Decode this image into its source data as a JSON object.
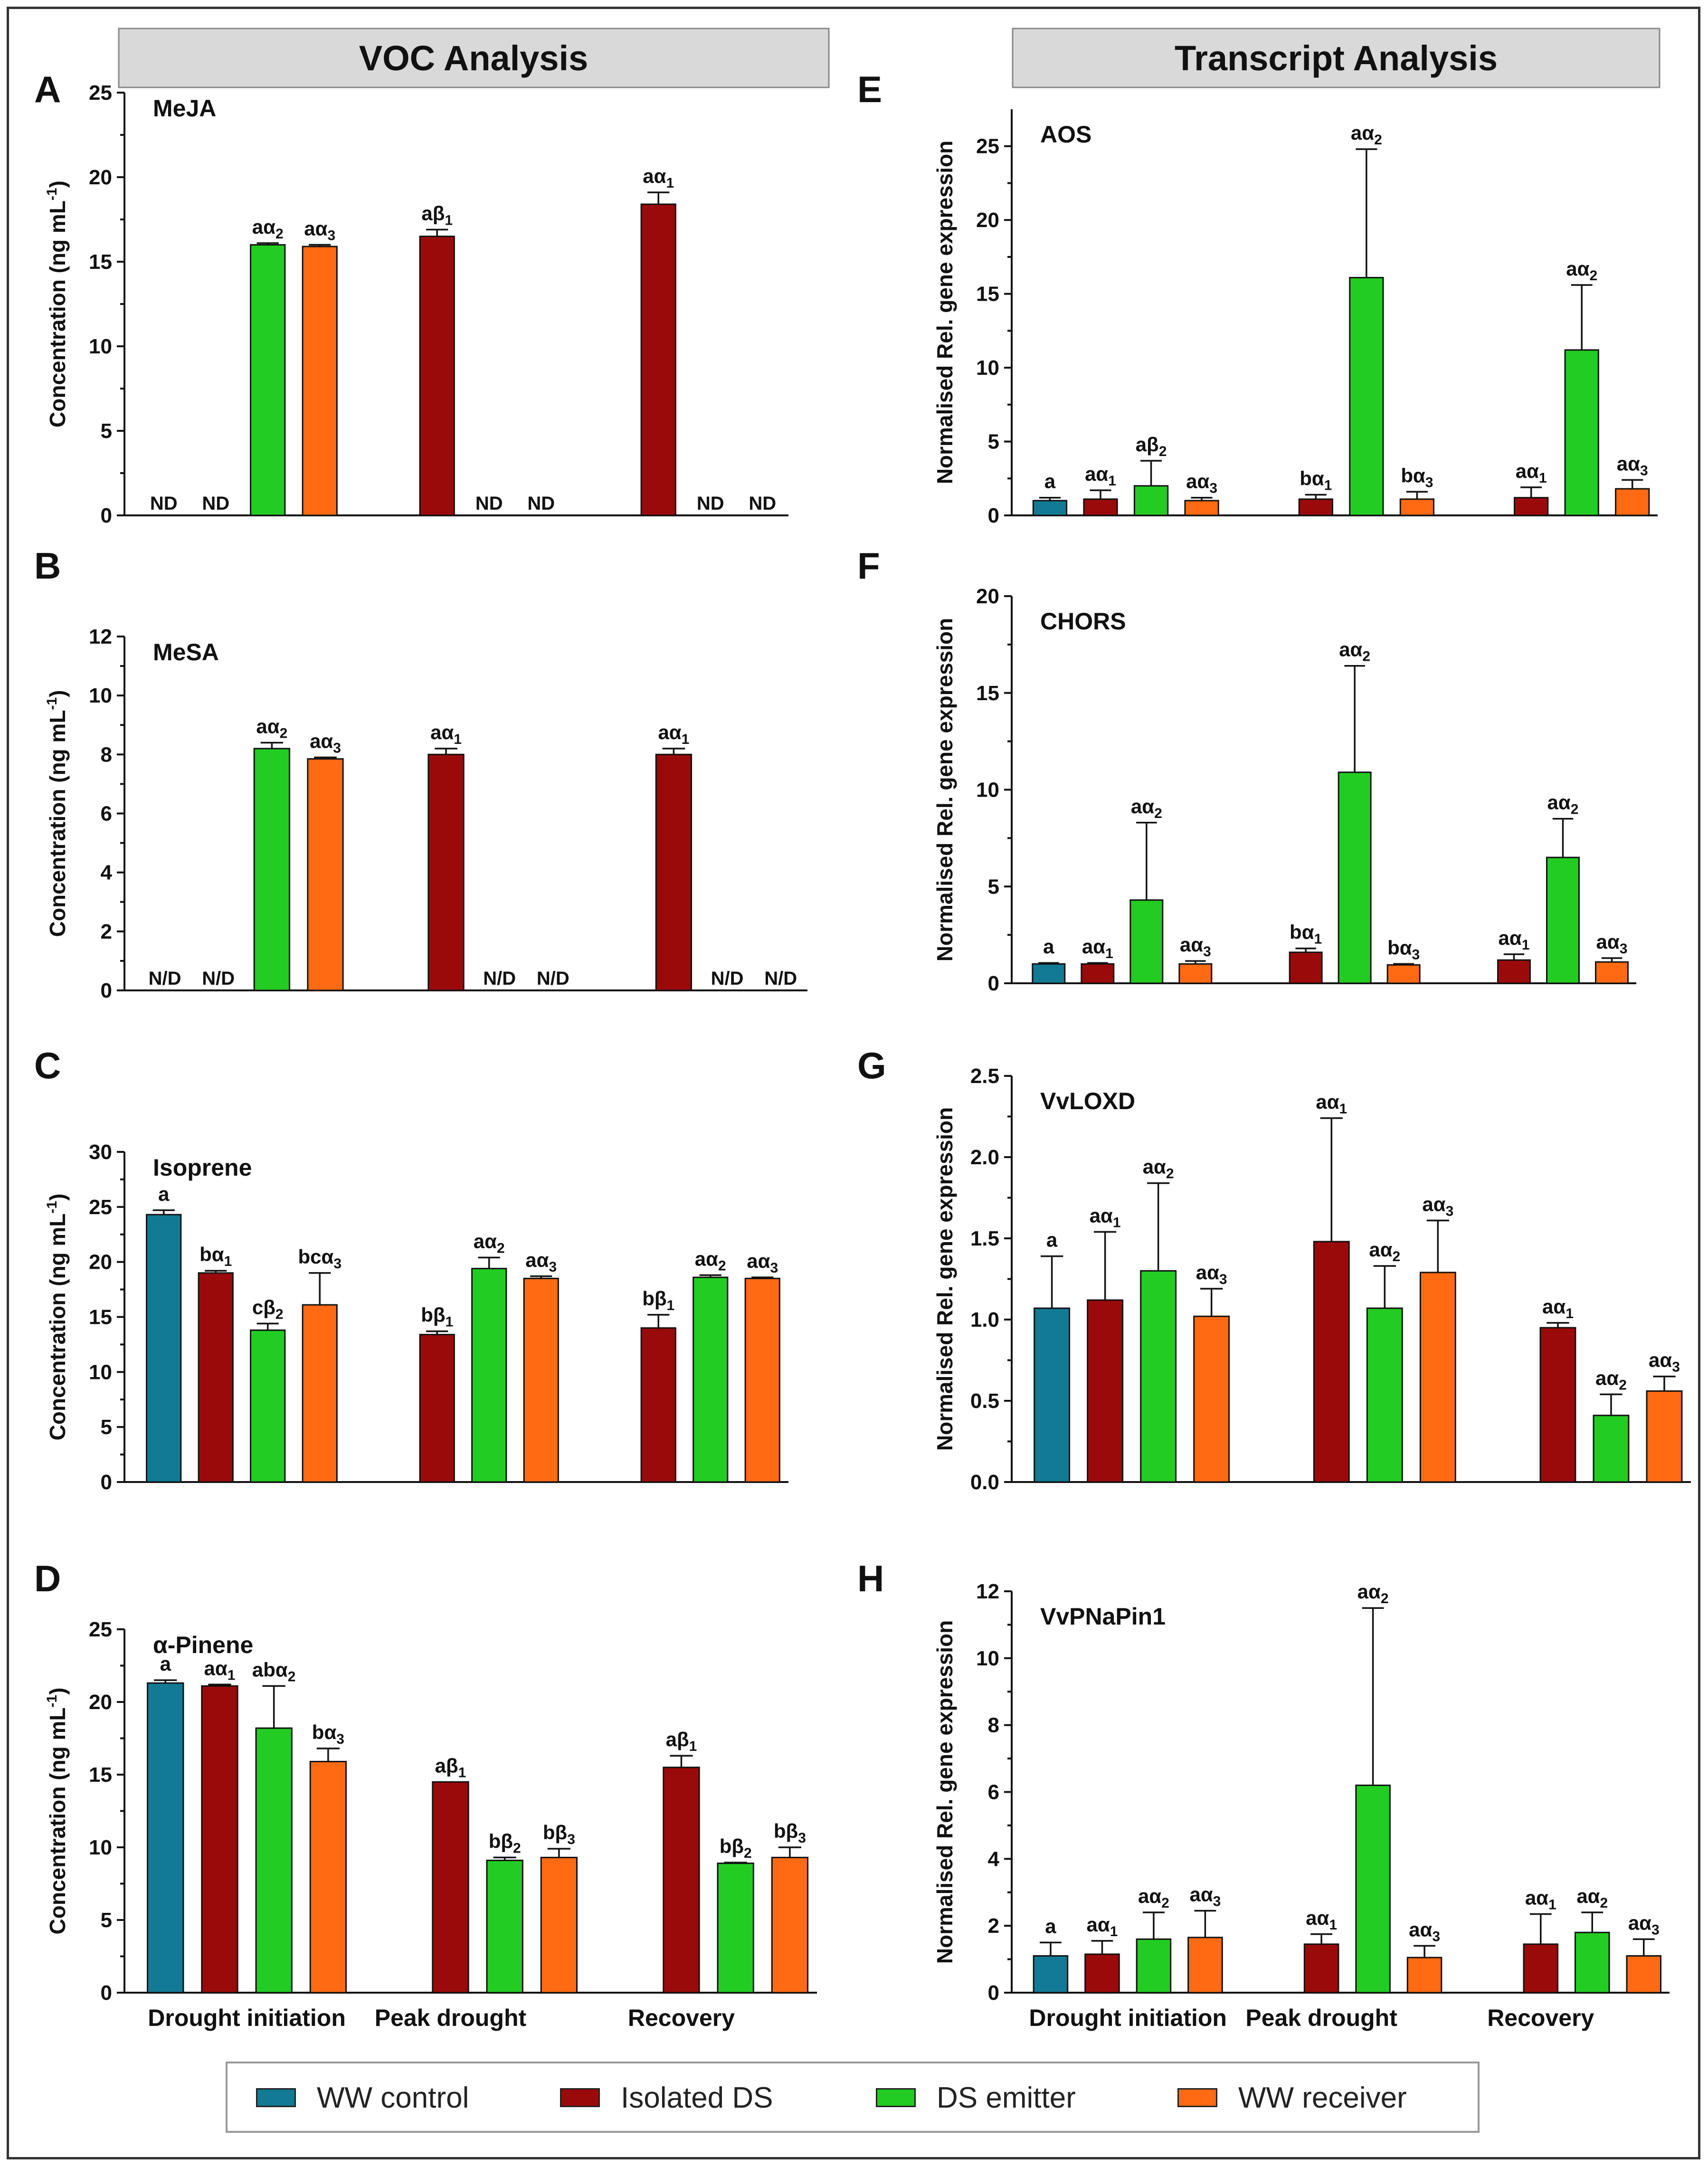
{
  "headers": {
    "left": "VOC Analysis",
    "right": "Transcript Analysis"
  },
  "colors": {
    "ww_control": "#127a94",
    "isolated_ds": "#9b0a0a",
    "ds_emitter": "#22cc22",
    "ww_receiver": "#ff6a13"
  },
  "legend": [
    {
      "label": "WW control",
      "color": "#127a94"
    },
    {
      "label": "Isolated DS",
      "color": "#9b0a0a"
    },
    {
      "label": "DS emitter",
      "color": "#22cc22"
    },
    {
      "label": "WW receiver",
      "color": "#ff6a13"
    }
  ],
  "chart_data": [
    {
      "panel": "A",
      "title": "MeJA",
      "type": "bar",
      "ylabel": "Concentration (ng mL-1)",
      "ylim": [
        0,
        25
      ],
      "yticks": [
        0,
        5,
        10,
        15,
        20,
        25
      ],
      "categories": [],
      "nd_text": "ND",
      "groups": [
        {
          "bars": [
            {
              "series": "WW control",
              "value": null,
              "err": 0,
              "label": ""
            },
            {
              "series": "Isolated DS",
              "value": null,
              "err": 0,
              "label": ""
            },
            {
              "series": "DS emitter",
              "value": 16.0,
              "err": 0.1,
              "label": "aα2"
            },
            {
              "series": "WW receiver",
              "value": 15.9,
              "err": 0.1,
              "label": "aα3"
            }
          ]
        },
        {
          "bars": [
            {
              "series": "WW control",
              "value": null,
              "err": 0,
              "label": ""
            },
            {
              "series": "Isolated DS",
              "value": 16.5,
              "err": 0.4,
              "label": "aβ1"
            },
            {
              "series": "DS emitter",
              "value": null,
              "err": 0,
              "label": ""
            },
            {
              "series": "WW receiver",
              "value": null,
              "err": 0,
              "label": ""
            }
          ]
        },
        {
          "bars": [
            {
              "series": "WW control",
              "value": null,
              "err": 0,
              "label": ""
            },
            {
              "series": "Isolated DS",
              "value": 18.4,
              "err": 0.7,
              "label": "aα1"
            },
            {
              "series": "DS emitter",
              "value": null,
              "err": 0,
              "label": ""
            },
            {
              "series": "WW receiver",
              "value": null,
              "err": 0,
              "label": ""
            }
          ]
        }
      ]
    },
    {
      "panel": "B",
      "title": "MeSA",
      "type": "bar",
      "ylabel": "Concentration (ng mL-1)",
      "ylim": [
        0,
        12
      ],
      "yticks": [
        0,
        2,
        4,
        6,
        8,
        10,
        12
      ],
      "categories": [],
      "nd_text": "N/D",
      "groups": [
        {
          "bars": [
            {
              "series": "WW control",
              "value": null,
              "err": 0,
              "label": ""
            },
            {
              "series": "Isolated DS",
              "value": null,
              "err": 0,
              "label": ""
            },
            {
              "series": "DS emitter",
              "value": 8.2,
              "err": 0.2,
              "label": "aα2"
            },
            {
              "series": "WW receiver",
              "value": 7.85,
              "err": 0.05,
              "label": "aα3"
            }
          ]
        },
        {
          "bars": [
            {
              "series": "WW control",
              "value": null,
              "err": 0,
              "label": ""
            },
            {
              "series": "Isolated DS",
              "value": 8.0,
              "err": 0.2,
              "label": "aα1"
            },
            {
              "series": "DS emitter",
              "value": null,
              "err": 0,
              "label": ""
            },
            {
              "series": "WW receiver",
              "value": null,
              "err": 0,
              "label": ""
            }
          ]
        },
        {
          "bars": [
            {
              "series": "WW control",
              "value": null,
              "err": 0,
              "label": ""
            },
            {
              "series": "Isolated DS",
              "value": 8.0,
              "err": 0.2,
              "label": "aα1"
            },
            {
              "series": "DS emitter",
              "value": null,
              "err": 0,
              "label": ""
            },
            {
              "series": "WW receiver",
              "value": null,
              "err": 0,
              "label": ""
            }
          ]
        }
      ]
    },
    {
      "panel": "C",
      "title": "Isoprene",
      "type": "bar",
      "ylabel": "Concentration (ng mL-1)",
      "ylim": [
        0,
        30
      ],
      "yticks": [
        0,
        5,
        10,
        15,
        20,
        25,
        30
      ],
      "categories": [],
      "nd_text": "",
      "groups": [
        {
          "bars": [
            {
              "series": "WW control",
              "value": 24.3,
              "err": 0.4,
              "label": "a"
            },
            {
              "series": "Isolated DS",
              "value": 19.0,
              "err": 0.2,
              "label": "bα1"
            },
            {
              "series": "DS emitter",
              "value": 13.8,
              "err": 0.6,
              "label": "cβ2"
            },
            {
              "series": "WW receiver",
              "value": 16.1,
              "err": 2.9,
              "label": "bcα3"
            }
          ]
        },
        {
          "bars": [
            {
              "series": "WW control",
              "value": null,
              "err": 0,
              "label": ""
            },
            {
              "series": "Isolated DS",
              "value": 13.4,
              "err": 0.3,
              "label": "bβ1"
            },
            {
              "series": "DS emitter",
              "value": 19.4,
              "err": 1.0,
              "label": "aα2"
            },
            {
              "series": "WW receiver",
              "value": 18.5,
              "err": 0.2,
              "label": "aα3"
            }
          ]
        },
        {
          "bars": [
            {
              "series": "WW control",
              "value": null,
              "err": 0,
              "label": ""
            },
            {
              "series": "Isolated DS",
              "value": 14.0,
              "err": 1.2,
              "label": "bβ1"
            },
            {
              "series": "DS emitter",
              "value": 18.6,
              "err": 0.2,
              "label": "aα2"
            },
            {
              "series": "WW receiver",
              "value": 18.5,
              "err": 0.1,
              "label": "aα3"
            }
          ]
        }
      ]
    },
    {
      "panel": "D",
      "title": "α-Pinene",
      "type": "bar",
      "ylabel": "Concentration (ng mL-1)",
      "ylim": [
        0,
        25
      ],
      "yticks": [
        0,
        5,
        10,
        15,
        20,
        25
      ],
      "categories": [
        "Drought initiation",
        "Peak drought",
        "Recovery"
      ],
      "nd_text": "",
      "groups": [
        {
          "bars": [
            {
              "series": "WW control",
              "value": 21.3,
              "err": 0.2,
              "label": "a"
            },
            {
              "series": "Isolated DS",
              "value": 21.1,
              "err": 0.1,
              "label": "aα1"
            },
            {
              "series": "DS emitter",
              "value": 18.2,
              "err": 2.9,
              "label": "abα2"
            },
            {
              "series": "WW receiver",
              "value": 15.9,
              "err": 0.9,
              "label": "bα3"
            }
          ]
        },
        {
          "bars": [
            {
              "series": "WW control",
              "value": null,
              "err": 0,
              "label": ""
            },
            {
              "series": "Isolated DS",
              "value": 14.5,
              "err": 0.0,
              "label": "aβ1"
            },
            {
              "series": "DS emitter",
              "value": 9.1,
              "err": 0.2,
              "label": "bβ2"
            },
            {
              "series": "WW receiver",
              "value": 9.3,
              "err": 0.6,
              "label": "bβ3"
            }
          ]
        },
        {
          "bars": [
            {
              "series": "WW control",
              "value": null,
              "err": 0,
              "label": ""
            },
            {
              "series": "Isolated DS",
              "value": 15.5,
              "err": 0.8,
              "label": "aβ1"
            },
            {
              "series": "DS emitter",
              "value": 8.9,
              "err": 0.05,
              "label": "bβ2"
            },
            {
              "series": "WW receiver",
              "value": 9.3,
              "err": 0.7,
              "label": "bβ3"
            }
          ]
        }
      ]
    },
    {
      "panel": "E",
      "title": "AOS",
      "type": "bar",
      "ylabel": "Normalised Rel. gene expression",
      "ylim": [
        0,
        27.5
      ],
      "yticks": [
        0,
        5,
        10,
        15,
        20,
        25
      ],
      "categories": [],
      "nd_text": "",
      "groups": [
        {
          "bars": [
            {
              "series": "WW control",
              "value": 1.0,
              "err": 0.2,
              "label": "a"
            },
            {
              "series": "Isolated DS",
              "value": 1.1,
              "err": 0.6,
              "label": "aα1"
            },
            {
              "series": "DS emitter",
              "value": 2.0,
              "err": 1.7,
              "label": "aβ2"
            },
            {
              "series": "WW receiver",
              "value": 1.0,
              "err": 0.2,
              "label": "aα3"
            }
          ]
        },
        {
          "bars": [
            {
              "series": "WW control",
              "value": null,
              "err": 0,
              "label": ""
            },
            {
              "series": "Isolated DS",
              "value": 1.1,
              "err": 0.3,
              "label": "bα1"
            },
            {
              "series": "DS emitter",
              "value": 16.1,
              "err": 8.7,
              "label": "aα2"
            },
            {
              "series": "WW receiver",
              "value": 1.1,
              "err": 0.5,
              "label": "bα3"
            }
          ]
        },
        {
          "bars": [
            {
              "series": "WW control",
              "value": null,
              "err": 0,
              "label": ""
            },
            {
              "series": "Isolated DS",
              "value": 1.2,
              "err": 0.7,
              "label": "aα1"
            },
            {
              "series": "DS emitter",
              "value": 11.2,
              "err": 4.4,
              "label": "aα2"
            },
            {
              "series": "WW receiver",
              "value": 1.8,
              "err": 0.6,
              "label": "aα3"
            }
          ]
        }
      ]
    },
    {
      "panel": "F",
      "title": "CHORS",
      "type": "bar",
      "ylabel": "Normalised Rel. gene expression",
      "ylim": [
        0,
        20
      ],
      "yticks": [
        0,
        5,
        10,
        15,
        20
      ],
      "categories": [],
      "nd_text": "",
      "groups": [
        {
          "bars": [
            {
              "series": "WW control",
              "value": 1.0,
              "err": 0.05,
              "label": "a"
            },
            {
              "series": "Isolated DS",
              "value": 1.0,
              "err": 0.05,
              "label": "aα1"
            },
            {
              "series": "DS emitter",
              "value": 4.3,
              "err": 4.0,
              "label": "aα2"
            },
            {
              "series": "WW receiver",
              "value": 1.0,
              "err": 0.15,
              "label": "aα3"
            }
          ]
        },
        {
          "bars": [
            {
              "series": "WW control",
              "value": null,
              "err": 0,
              "label": ""
            },
            {
              "series": "Isolated DS",
              "value": 1.6,
              "err": 0.2,
              "label": "bα1"
            },
            {
              "series": "DS emitter",
              "value": 10.9,
              "err": 5.5,
              "label": "aα2"
            },
            {
              "series": "WW receiver",
              "value": 0.95,
              "err": 0.05,
              "label": "bα3"
            }
          ]
        },
        {
          "bars": [
            {
              "series": "WW control",
              "value": null,
              "err": 0,
              "label": ""
            },
            {
              "series": "Isolated DS",
              "value": 1.2,
              "err": 0.3,
              "label": "aα1"
            },
            {
              "series": "DS emitter",
              "value": 6.5,
              "err": 2.0,
              "label": "aα2"
            },
            {
              "series": "WW receiver",
              "value": 1.1,
              "err": 0.2,
              "label": "aα3"
            }
          ]
        }
      ]
    },
    {
      "panel": "G",
      "title": "VvLOXD",
      "type": "bar",
      "ylabel": "Normalised Rel. gene expression",
      "ylim": [
        0,
        2.5
      ],
      "yticks": [
        0.0,
        0.5,
        1.0,
        1.5,
        2.0,
        2.5
      ],
      "categories": [],
      "nd_text": "",
      "groups": [
        {
          "bars": [
            {
              "series": "WW control",
              "value": 1.07,
              "err": 0.32,
              "label": "a"
            },
            {
              "series": "Isolated DS",
              "value": 1.12,
              "err": 0.42,
              "label": "aα1"
            },
            {
              "series": "DS emitter",
              "value": 1.3,
              "err": 0.54,
              "label": "aα2"
            },
            {
              "series": "WW receiver",
              "value": 1.02,
              "err": 0.17,
              "label": "aα3"
            }
          ]
        },
        {
          "bars": [
            {
              "series": "WW control",
              "value": null,
              "err": 0,
              "label": ""
            },
            {
              "series": "Isolated DS",
              "value": 1.48,
              "err": 0.76,
              "label": "aα1"
            },
            {
              "series": "DS emitter",
              "value": 1.07,
              "err": 0.26,
              "label": "aα2"
            },
            {
              "series": "WW receiver",
              "value": 1.29,
              "err": 0.32,
              "label": "aα3"
            }
          ]
        },
        {
          "bars": [
            {
              "series": "WW control",
              "value": null,
              "err": 0,
              "label": ""
            },
            {
              "series": "Isolated DS",
              "value": 0.95,
              "err": 0.03,
              "label": "aα1"
            },
            {
              "series": "DS emitter",
              "value": 0.41,
              "err": 0.13,
              "label": "aα2"
            },
            {
              "series": "WW receiver",
              "value": 0.56,
              "err": 0.09,
              "label": "aα3"
            }
          ]
        }
      ]
    },
    {
      "panel": "H",
      "title": "VvPNaPin1",
      "type": "bar",
      "ylabel": "Normalised Rel. gene expression",
      "ylim": [
        0,
        12
      ],
      "yticks": [
        0,
        2,
        4,
        6,
        8,
        10,
        12
      ],
      "categories": [
        "Drought initiation",
        "Peak drought",
        "Recovery"
      ],
      "nd_text": "",
      "groups": [
        {
          "bars": [
            {
              "series": "WW control",
              "value": 1.1,
              "err": 0.4,
              "label": "a"
            },
            {
              "series": "Isolated DS",
              "value": 1.15,
              "err": 0.4,
              "label": "aα1"
            },
            {
              "series": "DS emitter",
              "value": 1.6,
              "err": 0.8,
              "label": "aα2"
            },
            {
              "series": "WW receiver",
              "value": 1.65,
              "err": 0.8,
              "label": "aα3"
            }
          ]
        },
        {
          "bars": [
            {
              "series": "WW control",
              "value": null,
              "err": 0,
              "label": ""
            },
            {
              "series": "Isolated DS",
              "value": 1.45,
              "err": 0.3,
              "label": "aα1"
            },
            {
              "series": "DS emitter",
              "value": 6.2,
              "err": 5.3,
              "label": "aα2"
            },
            {
              "series": "WW receiver",
              "value": 1.05,
              "err": 0.35,
              "label": "aα3"
            }
          ]
        },
        {
          "bars": [
            {
              "series": "WW control",
              "value": null,
              "err": 0,
              "label": ""
            },
            {
              "series": "Isolated DS",
              "value": 1.45,
              "err": 0.9,
              "label": "aα1"
            },
            {
              "series": "DS emitter",
              "value": 1.8,
              "err": 0.6,
              "label": "aα2"
            },
            {
              "series": "WW receiver",
              "value": 1.1,
              "err": 0.5,
              "label": "aα3"
            }
          ]
        }
      ]
    }
  ]
}
